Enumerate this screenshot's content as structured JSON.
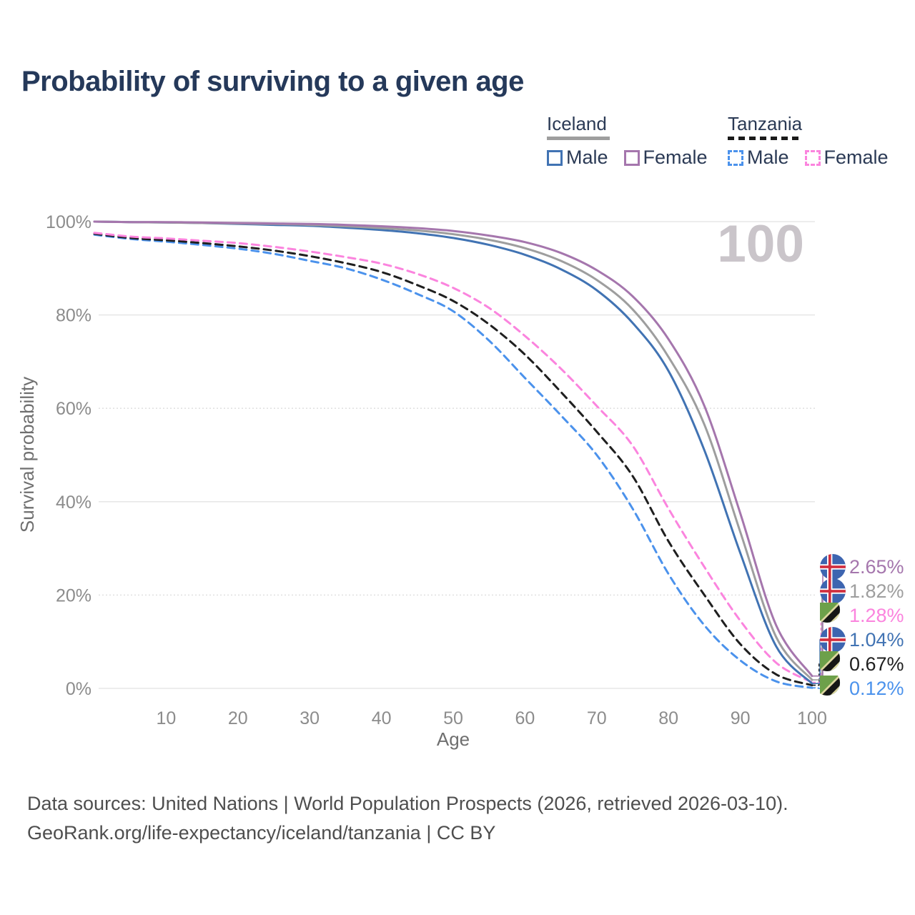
{
  "title": "Probability of surviving to a given age",
  "watermark": "100",
  "legend": {
    "groups": [
      {
        "name": "Iceland",
        "line_style": "solid",
        "swatch_color": "#9e9e9e",
        "items": [
          {
            "label": "Male",
            "color": "#4173b3"
          },
          {
            "label": "Female",
            "color": "#a576ad"
          }
        ]
      },
      {
        "name": "Tanzania",
        "line_style": "dashed",
        "swatch_color": "#1a1a1a",
        "items": [
          {
            "label": "Male",
            "color": "#4b92ec"
          },
          {
            "label": "Female",
            "color": "#fb84de"
          }
        ]
      }
    ]
  },
  "chart_data": {
    "type": "line",
    "title": "Probability of surviving to a given age",
    "xlabel": "Age",
    "ylabel": "Survival probability",
    "xlim": [
      0,
      100
    ],
    "ylim": [
      0,
      100
    ],
    "grid": "horizontal",
    "x_ticks": [
      10,
      20,
      30,
      40,
      50,
      60,
      70,
      80,
      90,
      100
    ],
    "y_ticks": [
      {
        "value": 0,
        "label": "0%",
        "dotted": false
      },
      {
        "value": 20,
        "label": "20%",
        "dotted": true
      },
      {
        "value": 40,
        "label": "40%",
        "dotted": false
      },
      {
        "value": 60,
        "label": "60%",
        "dotted": true
      },
      {
        "value": 80,
        "label": "80%",
        "dotted": false
      },
      {
        "value": 100,
        "label": "100%",
        "dotted": false
      }
    ],
    "x": [
      0,
      5,
      10,
      15,
      20,
      25,
      30,
      35,
      40,
      45,
      50,
      55,
      60,
      65,
      70,
      75,
      80,
      85,
      90,
      95,
      100
    ],
    "series": [
      {
        "name": "Tanzania Male",
        "country": "Tanzania",
        "sex": "Male",
        "color": "#4b92ec",
        "dash": "dashed",
        "flag": "tanzania",
        "end_label": "0.12%",
        "label_row": 5,
        "values": [
          97.2,
          96.3,
          95.7,
          95.0,
          94.2,
          93.1,
          91.6,
          90.0,
          87.6,
          84.5,
          80.8,
          74.5,
          66.5,
          58.5,
          50.0,
          38.5,
          24.5,
          13.5,
          6.0,
          1.5,
          0.12
        ]
      },
      {
        "name": "Tanzania",
        "country": "Tanzania",
        "sex": "All",
        "color": "#1f1f1f",
        "dash": "dashed",
        "flag": "tanzania",
        "end_label": "0.67%",
        "label_row": 4,
        "values": [
          97.4,
          96.5,
          96.0,
          95.4,
          94.7,
          93.8,
          92.6,
          91.1,
          89.2,
          86.4,
          83.0,
          78.0,
          71.5,
          63.5,
          55.0,
          45.5,
          31.5,
          20.0,
          9.5,
          3.0,
          0.67
        ]
      },
      {
        "name": "Tanzania Female",
        "country": "Tanzania",
        "sex": "Female",
        "color": "#fb84de",
        "dash": "dashed",
        "flag": "tanzania",
        "end_label": "1.28%",
        "label_row": 2,
        "values": [
          97.6,
          96.8,
          96.4,
          95.9,
          95.4,
          94.6,
          93.6,
          92.4,
          91.0,
          88.8,
          85.8,
          81.5,
          75.5,
          68.5,
          60.5,
          52.0,
          38.5,
          26.0,
          14.5,
          5.5,
          1.28
        ]
      },
      {
        "name": "Iceland Male",
        "country": "Iceland",
        "sex": "Male",
        "color": "#4173b3",
        "dash": "solid",
        "flag": "iceland",
        "end_label": "1.04%",
        "label_row": 3,
        "values": [
          100,
          99.9,
          99.8,
          99.7,
          99.5,
          99.3,
          99.1,
          98.7,
          98.2,
          97.5,
          96.5,
          95.0,
          92.9,
          89.8,
          85.3,
          78.3,
          68.0,
          51.0,
          29.0,
          9.0,
          1.04
        ]
      },
      {
        "name": "Iceland",
        "country": "Iceland",
        "sex": "All",
        "color": "#9e9e9e",
        "dash": "solid",
        "flag": "iceland",
        "end_label": "1.82%",
        "label_row": 1,
        "values": [
          100,
          99.9,
          99.8,
          99.7,
          99.6,
          99.5,
          99.3,
          99.0,
          98.6,
          98.1,
          97.3,
          96.1,
          94.3,
          91.6,
          87.5,
          81.2,
          71.0,
          56.5,
          33.5,
          11.0,
          1.82
        ]
      },
      {
        "name": "Iceland Female",
        "country": "Iceland",
        "sex": "Female",
        "color": "#a576ad",
        "dash": "solid",
        "flag": "iceland",
        "end_label": "2.65%",
        "label_row": 0,
        "values": [
          100,
          99.9,
          99.9,
          99.8,
          99.7,
          99.6,
          99.5,
          99.3,
          99.0,
          98.6,
          98.0,
          97.0,
          95.6,
          93.3,
          89.6,
          84.0,
          74.8,
          60.5,
          37.5,
          13.5,
          2.65
        ]
      }
    ],
    "age_indicator": "100"
  },
  "footer": {
    "line1": "Data sources: United Nations | World Population Prospects (2026, retrieved 2026-03-10).",
    "line2": "GeoRank.org/life-expectancy/iceland/tanzania | CC BY"
  }
}
